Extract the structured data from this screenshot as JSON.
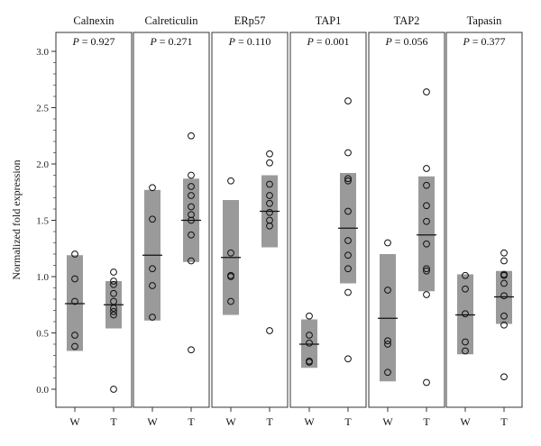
{
  "chart_data": {
    "type": "box",
    "ylabel": "Normalized fold expression",
    "ylim": [
      0,
      3.0
    ],
    "yticks": [
      0.0,
      0.5,
      1.0,
      1.5,
      2.0,
      2.5,
      3.0
    ],
    "ytick_labels": [
      "0.0",
      "0.5",
      "1.0",
      "1.5",
      "2.0",
      "2.5",
      "3.0"
    ],
    "categories": [
      "W",
      "T"
    ],
    "box_color": "#9a9a9a",
    "panels": [
      {
        "title": "Calnexin",
        "p_label": "P",
        "p_value": "= 0.927",
        "groups": [
          {
            "name": "W",
            "box": [
              0.34,
              1.19
            ],
            "median": 0.76,
            "points": [
              1.2,
              0.98,
              0.78,
              0.48,
              0.38
            ]
          },
          {
            "name": "T",
            "box": [
              0.54,
              0.96
            ],
            "median": 0.75,
            "points": [
              1.04,
              0.96,
              0.93,
              0.85,
              0.78,
              0.72,
              0.69,
              0.66,
              0.0
            ]
          }
        ]
      },
      {
        "title": "Calreticulin",
        "p_label": "P",
        "p_value": "= 0.271",
        "groups": [
          {
            "name": "W",
            "box": [
              0.61,
              1.77
            ],
            "median": 1.19,
            "points": [
              1.79,
              1.51,
              1.07,
              0.92,
              0.64
            ]
          },
          {
            "name": "T",
            "box": [
              1.13,
              1.87
            ],
            "median": 1.5,
            "points": [
              2.25,
              1.9,
              1.8,
              1.72,
              1.62,
              1.55,
              1.5,
              1.37,
              1.14,
              0.35
            ]
          }
        ]
      },
      {
        "title": "ERp57",
        "p_label": "P",
        "p_value": "= 0.110",
        "groups": [
          {
            "name": "W",
            "box": [
              0.66,
              1.68
            ],
            "median": 1.17,
            "points": [
              1.85,
              1.21,
              1.01,
              1.0,
              0.78
            ]
          },
          {
            "name": "T",
            "box": [
              1.26,
              1.9
            ],
            "median": 1.58,
            "points": [
              2.09,
              2.01,
              1.82,
              1.72,
              1.65,
              1.57,
              1.5,
              1.45,
              0.52
            ]
          }
        ]
      },
      {
        "title": "TAP1",
        "p_label": "P",
        "p_value": "= 0.001",
        "groups": [
          {
            "name": "W",
            "box": [
              0.19,
              0.62
            ],
            "median": 0.4,
            "points": [
              0.65,
              0.48,
              0.41,
              0.25,
              0.24
            ]
          },
          {
            "name": "T",
            "box": [
              0.94,
              1.92
            ],
            "median": 1.43,
            "points": [
              2.56,
              2.1,
              1.87,
              1.85,
              1.58,
              1.32,
              1.19,
              1.07,
              0.86,
              0.27
            ]
          }
        ]
      },
      {
        "title": "TAP2",
        "p_label": "P",
        "p_value": "= 0.056",
        "groups": [
          {
            "name": "W",
            "box": [
              0.07,
              1.2
            ],
            "median": 0.63,
            "points": [
              1.3,
              0.88,
              0.43,
              0.4,
              0.15
            ]
          },
          {
            "name": "T",
            "box": [
              0.87,
              1.89
            ],
            "median": 1.37,
            "points": [
              2.64,
              1.96,
              1.81,
              1.63,
              1.49,
              1.29,
              1.07,
              1.05,
              0.84,
              0.06
            ]
          }
        ]
      },
      {
        "title": "Tapasin",
        "p_label": "P",
        "p_value": "= 0.377",
        "groups": [
          {
            "name": "W",
            "box": [
              0.31,
              1.02
            ],
            "median": 0.66,
            "points": [
              1.01,
              0.89,
              0.67,
              0.42,
              0.34
            ]
          },
          {
            "name": "T",
            "box": [
              0.58,
              1.05
            ],
            "median": 0.82,
            "points": [
              1.21,
              1.14,
              1.02,
              1.01,
              0.94,
              0.83,
              0.65,
              0.57,
              0.11
            ]
          }
        ]
      }
    ]
  }
}
